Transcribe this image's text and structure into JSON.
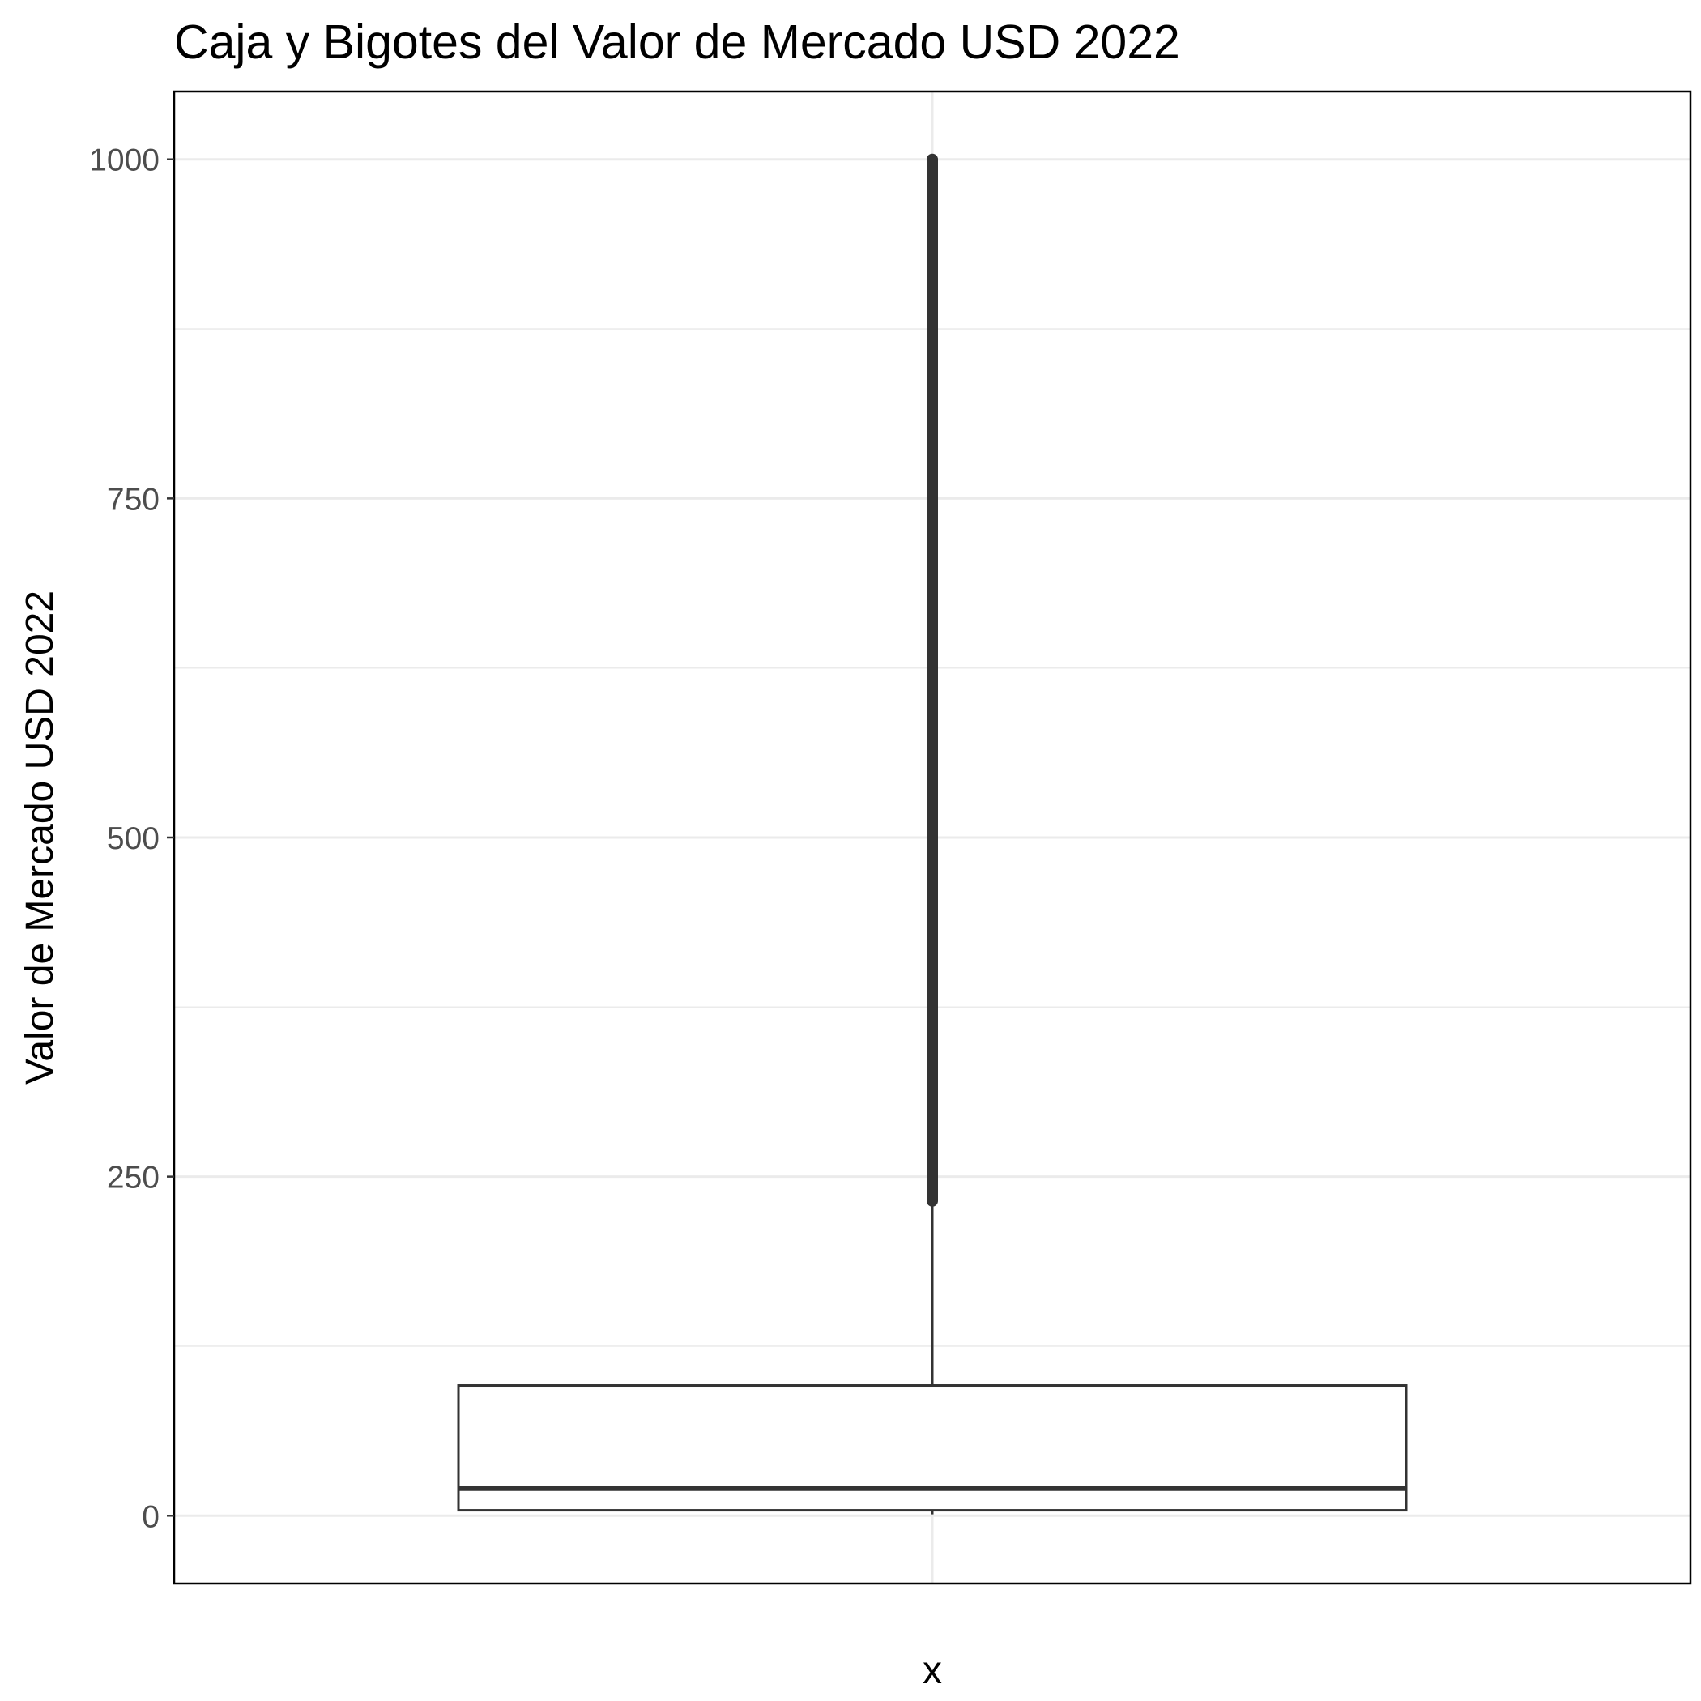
{
  "chart_data": {
    "type": "box",
    "title": "Caja y Bigotes del Valor de Mercado USD 2022",
    "xlabel": "x",
    "ylabel": "Valor de Mercado USD 2022",
    "ylim": [
      -50,
      1050
    ],
    "y_ticks": [
      0,
      250,
      500,
      750,
      1000
    ],
    "y_tick_labels": [
      "0",
      "250",
      "500",
      "750",
      "1000"
    ],
    "grid": true,
    "legend": "none",
    "box": {
      "whisker_low": 1,
      "q1": 4,
      "median": 20,
      "q3": 96,
      "whisker_high": 232
    },
    "outliers": {
      "from": 232,
      "to": 1000,
      "description_visible": false
    },
    "colors": {
      "box_stroke": "#333333",
      "grid": "#ebebeb",
      "panel_border": "#000000"
    }
  }
}
